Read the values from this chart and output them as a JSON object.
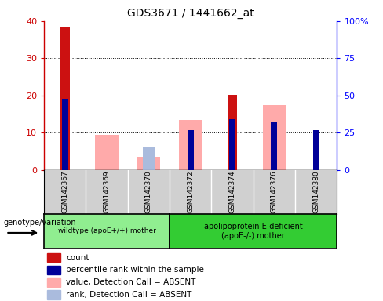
{
  "title": "GDS3671 / 1441662_at",
  "samples": [
    "GSM142367",
    "GSM142369",
    "GSM142370",
    "GSM142372",
    "GSM142374",
    "GSM142376",
    "GSM142380"
  ],
  "count_values": [
    38.5,
    0,
    0,
    0,
    20.2,
    0,
    0
  ],
  "percentile_rank_pct": [
    48,
    0,
    0,
    27,
    34,
    32,
    27
  ],
  "value_absent": [
    0,
    9.5,
    3.5,
    13.5,
    0,
    17.5,
    0
  ],
  "rank_absent_pct": [
    0,
    0,
    15,
    0,
    0,
    0,
    0
  ],
  "has_count": [
    true,
    false,
    false,
    false,
    true,
    false,
    false
  ],
  "has_percentile": [
    true,
    false,
    false,
    true,
    true,
    true,
    true
  ],
  "has_value_absent": [
    false,
    true,
    true,
    true,
    false,
    true,
    false
  ],
  "has_rank_absent": [
    false,
    false,
    true,
    false,
    false,
    false,
    false
  ],
  "groups": [
    {
      "label": "wildtype (apoE+/+) mother",
      "n_samples": 3,
      "color": "#90ee90"
    },
    {
      "label": "apolipoprotein E-deficient\n(apoE-/-) mother",
      "n_samples": 4,
      "color": "#33cc33"
    }
  ],
  "ylim_left": [
    0,
    40
  ],
  "ylim_right": [
    0,
    100
  ],
  "yticks_left": [
    0,
    10,
    20,
    30,
    40
  ],
  "ytick_labels_left": [
    "0",
    "10",
    "20",
    "30",
    "40"
  ],
  "yticks_right_vals": [
    0,
    25,
    50,
    75,
    100
  ],
  "ytick_labels_right": [
    "0",
    "25",
    "50",
    "75",
    "100%"
  ],
  "color_count": "#cc1111",
  "color_percentile": "#000099",
  "color_value_absent": "#ffaaaa",
  "color_rank_absent": "#aabbdd",
  "legend_items": [
    {
      "label": "count",
      "color": "#cc1111"
    },
    {
      "label": "percentile rank within the sample",
      "color": "#000099"
    },
    {
      "label": "value, Detection Call = ABSENT",
      "color": "#ffaaaa"
    },
    {
      "label": "rank, Detection Call = ABSENT",
      "color": "#aabbdd"
    }
  ]
}
